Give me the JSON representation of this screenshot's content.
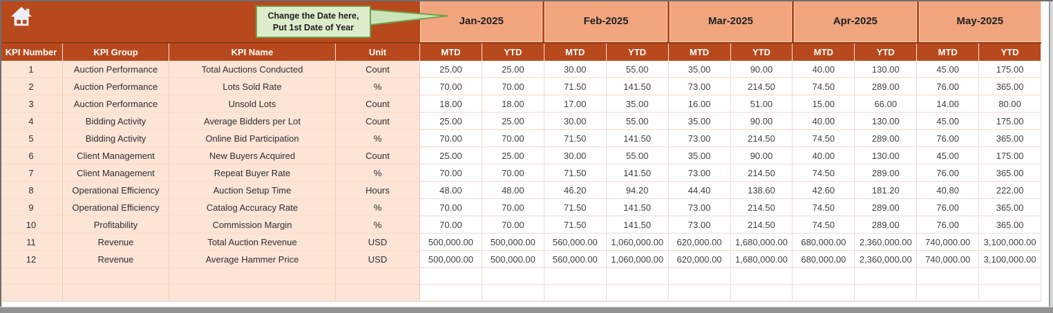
{
  "header": {
    "callout": {
      "line1": "Change the Date here,",
      "line2": "Put 1st Date of Year"
    },
    "months": [
      "Jan-2025",
      "Feb-2025",
      "Mar-2025",
      "Apr-2025",
      "May-2025"
    ],
    "value_columns": [
      "MTD",
      "YTD"
    ]
  },
  "table": {
    "columns": {
      "number": "KPI Number",
      "group": "KPI Group",
      "name": "KPI Name",
      "unit": "Unit"
    },
    "rows": [
      {
        "number": "1",
        "group": "Auction Performance",
        "name": "Total Auctions Conducted",
        "unit": "Count",
        "values": [
          "25.00",
          "25.00",
          "30.00",
          "55.00",
          "35.00",
          "90.00",
          "40.00",
          "130.00",
          "45.00",
          "175.00"
        ]
      },
      {
        "number": "2",
        "group": "Auction Performance",
        "name": "Lots Sold Rate",
        "unit": "%",
        "values": [
          "70.00",
          "70.00",
          "71.50",
          "141.50",
          "73.00",
          "214.50",
          "74.50",
          "289.00",
          "76.00",
          "365.00"
        ]
      },
      {
        "number": "3",
        "group": "Auction Performance",
        "name": "Unsold Lots",
        "unit": "Count",
        "values": [
          "18.00",
          "18.00",
          "17.00",
          "35.00",
          "16.00",
          "51.00",
          "15.00",
          "66.00",
          "14.00",
          "80.00"
        ]
      },
      {
        "number": "4",
        "group": "Bidding Activity",
        "name": "Average Bidders per Lot",
        "unit": "Count",
        "values": [
          "25.00",
          "25.00",
          "30.00",
          "55.00",
          "35.00",
          "90.00",
          "40.00",
          "130.00",
          "45.00",
          "175.00"
        ]
      },
      {
        "number": "5",
        "group": "Bidding Activity",
        "name": "Online Bid Participation",
        "unit": "%",
        "values": [
          "70.00",
          "70.00",
          "71.50",
          "141.50",
          "73.00",
          "214.50",
          "74.50",
          "289.00",
          "76.00",
          "365.00"
        ]
      },
      {
        "number": "6",
        "group": "Client Management",
        "name": "New Buyers Acquired",
        "unit": "Count",
        "values": [
          "25.00",
          "25.00",
          "30.00",
          "55.00",
          "35.00",
          "90.00",
          "40.00",
          "130.00",
          "45.00",
          "175.00"
        ]
      },
      {
        "number": "7",
        "group": "Client Management",
        "name": "Repeat Buyer Rate",
        "unit": "%",
        "values": [
          "70.00",
          "70.00",
          "71.50",
          "141.50",
          "73.00",
          "214.50",
          "74.50",
          "289.00",
          "76.00",
          "365.00"
        ]
      },
      {
        "number": "8",
        "group": "Operational Efficiency",
        "name": "Auction Setup Time",
        "unit": "Hours",
        "values": [
          "48.00",
          "48.00",
          "46.20",
          "94.20",
          "44.40",
          "138.60",
          "42.60",
          "181.20",
          "40.80",
          "222.00"
        ]
      },
      {
        "number": "9",
        "group": "Operational Efficiency",
        "name": "Catalog Accuracy Rate",
        "unit": "%",
        "values": [
          "70.00",
          "70.00",
          "71.50",
          "141.50",
          "73.00",
          "214.50",
          "74.50",
          "289.00",
          "76.00",
          "365.00"
        ]
      },
      {
        "number": "10",
        "group": "Profitability",
        "name": "Commission Margin",
        "unit": "%",
        "values": [
          "70.00",
          "70.00",
          "71.50",
          "141.50",
          "73.00",
          "214.50",
          "74.50",
          "289.00",
          "76.00",
          "365.00"
        ]
      },
      {
        "number": "11",
        "group": "Revenue",
        "name": "Total Auction Revenue",
        "unit": "USD",
        "values": [
          "500,000.00",
          "500,000.00",
          "560,000.00",
          "1,060,000.00",
          "620,000.00",
          "1,680,000.00",
          "680,000.00",
          "2,360,000.00",
          "740,000.00",
          "3,100,000.00"
        ]
      },
      {
        "number": "12",
        "group": "Revenue",
        "name": "Average Hammer Price",
        "unit": "USD",
        "values": [
          "500,000.00",
          "500,000.00",
          "560,000.00",
          "1,060,000.00",
          "620,000.00",
          "1,680,000.00",
          "680,000.00",
          "2,360,000.00",
          "740,000.00",
          "3,100,000.00"
        ]
      }
    ],
    "empty_row_count": 2
  },
  "icons": {
    "home": "home-icon"
  },
  "colors": {
    "header_dark_orange": "#B8491C",
    "month_band_peach": "#F1A57E",
    "row_label_bg": "#FCE4D6",
    "grid_line": "#F4D9C9",
    "callout_bg": "#DDEDCC",
    "callout_border": "#71A150",
    "scrollbar_gray": "#929292"
  }
}
